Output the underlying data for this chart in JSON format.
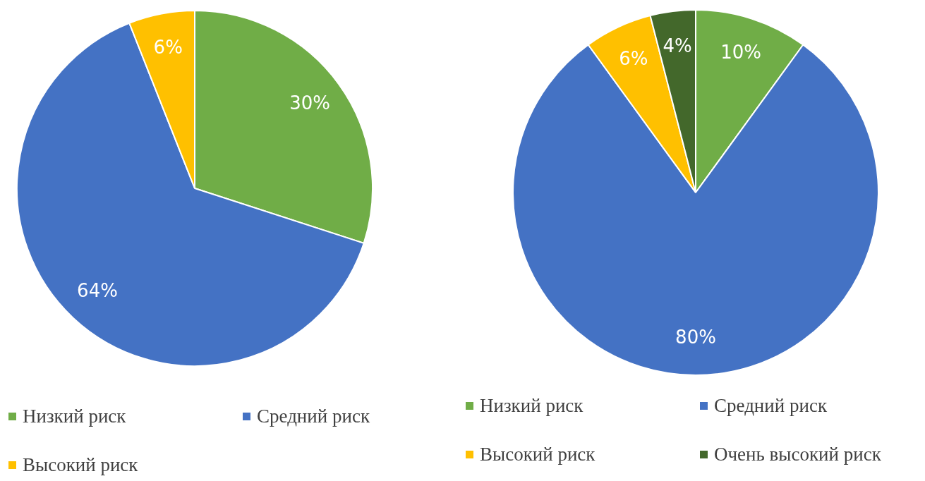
{
  "chart_data": [
    {
      "type": "pie",
      "categories": [
        "Низкий риск",
        "Средний риск",
        "Высокий риск"
      ],
      "values": [
        30,
        64,
        6
      ],
      "colors": [
        "#70ad47",
        "#4472c4",
        "#ffc000"
      ],
      "value_labels": [
        "30%",
        "64%",
        "6%"
      ],
      "legend": "bottom"
    },
    {
      "type": "pie",
      "categories": [
        "Низкий риск",
        "Средний риск",
        "Высокий риск",
        "Очень высокий риск"
      ],
      "values": [
        10,
        80,
        6,
        4
      ],
      "colors": [
        "#70ad47",
        "#4472c4",
        "#ffc000",
        "#43682b"
      ],
      "value_labels": [
        "10%",
        "80%",
        "6%",
        "4%"
      ],
      "legend": "bottom"
    }
  ]
}
